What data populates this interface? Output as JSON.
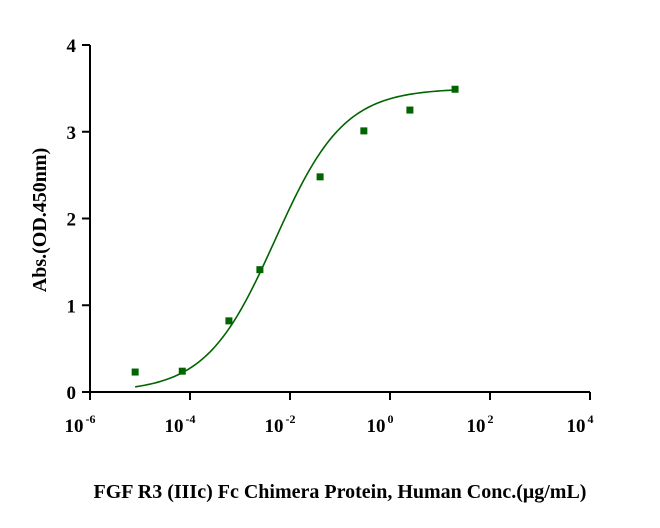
{
  "chart_data": {
    "type": "scatter",
    "title": "",
    "xlabel": "FGF R3 (IIIc) Fc Chimera Protein, Human  Conc.(μg/mL)",
    "ylabel": "Abs.(OD.450nm)",
    "x_scale": "log10",
    "xlim": [
      1e-06,
      10000
    ],
    "ylim": [
      0,
      4
    ],
    "x_ticks": [
      {
        "base": "10",
        "exp": "-6"
      },
      {
        "base": "10",
        "exp": "-4"
      },
      {
        "base": "10",
        "exp": "-2"
      },
      {
        "base": "10",
        "exp": "0"
      },
      {
        "base": "10",
        "exp": "2"
      },
      {
        "base": "10",
        "exp": "4"
      }
    ],
    "y_ticks": [
      "0",
      "1",
      "2",
      "3",
      "4"
    ],
    "grid": false,
    "legend": "none",
    "series": [
      {
        "color": "#006400",
        "marker": "square",
        "fit": "4PL",
        "x": [
          8e-06,
          7e-05,
          0.0006,
          0.0025,
          0.04,
          0.3,
          2.5,
          20
        ],
        "y": [
          0.23,
          0.24,
          0.82,
          1.41,
          2.48,
          3.01,
          3.25,
          3.49
        ]
      }
    ]
  }
}
